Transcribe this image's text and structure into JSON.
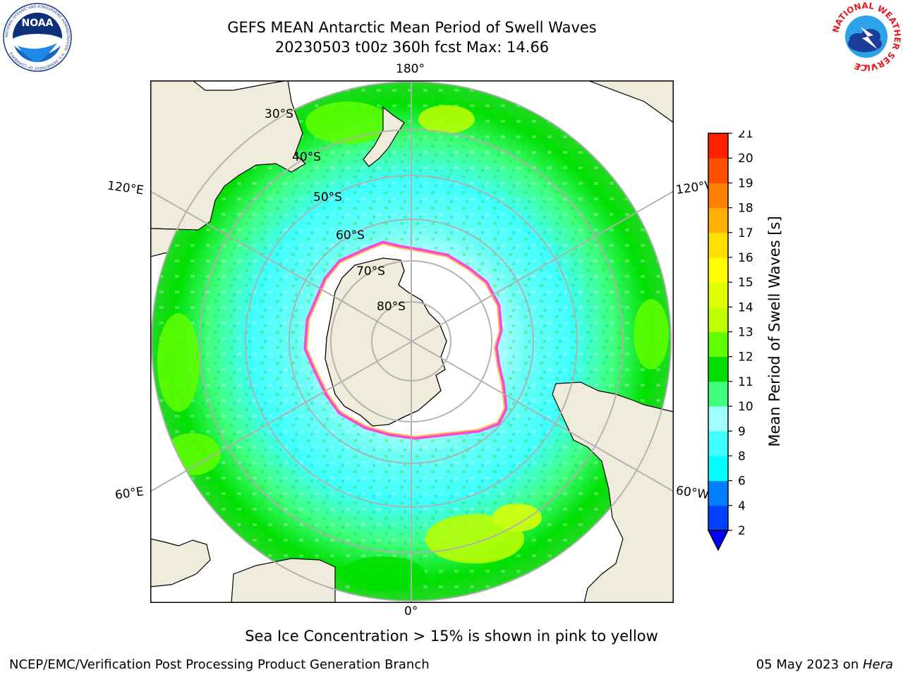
{
  "title_line1": "GEFS MEAN Antarctic Mean Period of Swell Waves",
  "title_line2": "20230503 t00z 360h fcst   Max: 14.66",
  "logos": {
    "left": {
      "text": "NOAA",
      "ring": "NATIONAL OCEANIC AND ATMOSPHERIC ADMINISTRATION · U.S. DEPARTMENT OF COMMERCE",
      "icon": "noaa-logo"
    },
    "right": {
      "text": "NATIONAL WEATHER SERVICE",
      "icon": "nws-logo"
    }
  },
  "longitude_labels": {
    "top": "180°",
    "bottom": "0°",
    "left_upper": "120°E",
    "right_upper": "120°W",
    "left_lower": "60°E",
    "right_lower": "60°W"
  },
  "latitude_labels": [
    "30°S",
    "40°S",
    "50°S",
    "60°S",
    "70°S",
    "80°S"
  ],
  "colorbar": {
    "label": "Mean Period of Swell Waves [s]",
    "ticks": [
      "2",
      "4",
      "6",
      "8",
      "9",
      "10",
      "11",
      "12",
      "13",
      "14",
      "15",
      "16",
      "17",
      "18",
      "19",
      "20",
      "21"
    ],
    "colors": [
      "#0040ff",
      "#0080ff",
      "#00ffff",
      "#40ffff",
      "#a0ffff",
      "#40ff80",
      "#00e000",
      "#60ff00",
      "#c0ff00",
      "#e0ff00",
      "#ffff00",
      "#ffe000",
      "#ffb000",
      "#ff8000",
      "#ff5000",
      "#ff2000",
      "#ff0000"
    ],
    "extend_color": "#0000ff"
  },
  "colors": {
    "land": "#efecdc",
    "ice": "#ff44dd",
    "grid": "#b0b0b0"
  },
  "subcaption": "Sea Ice Concentration > 15% is shown in pink to yellow",
  "footer_left": "NCEP/EMC/Verification Post Processing Product Generation Branch",
  "footer_right_prefix": "05 May 2023 on ",
  "footer_right_host": "Hera"
}
